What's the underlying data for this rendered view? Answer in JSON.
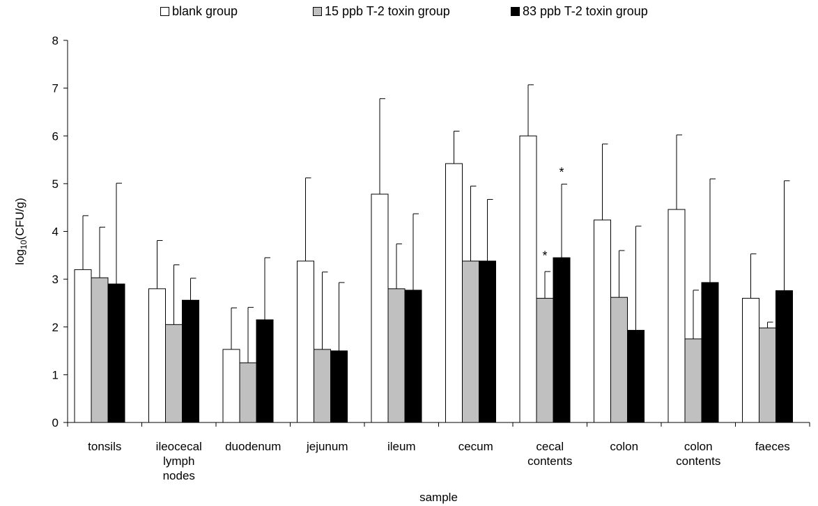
{
  "chart_data": {
    "type": "bar",
    "title": "",
    "xlabel": "sample",
    "ylabel": "log10(CFU/g)",
    "ylabel_parts": {
      "base": "log",
      "sub": "10",
      "rest": "(CFU/g)"
    },
    "ylim": [
      0,
      8
    ],
    "y_ticks": [
      0,
      1,
      2,
      3,
      4,
      5,
      6,
      7,
      8
    ],
    "grid": false,
    "legend_placement": "top",
    "categories": [
      [
        "tonsils"
      ],
      [
        "ileocecal",
        "lymph",
        "nodes"
      ],
      [
        "duodenum"
      ],
      [
        "jejunum"
      ],
      [
        "ileum"
      ],
      [
        "cecum"
      ],
      [
        "cecal",
        "contents"
      ],
      [
        "colon"
      ],
      [
        "colon",
        "contents"
      ],
      [
        "faeces"
      ]
    ],
    "series": [
      {
        "name": "blank group",
        "color": "#ffffff",
        "values": [
          3.2,
          2.8,
          1.53,
          3.38,
          4.78,
          5.42,
          6.0,
          4.24,
          4.46,
          2.6
        ],
        "errors": [
          1.13,
          1.01,
          0.87,
          1.74,
          2.0,
          0.68,
          1.07,
          1.59,
          1.56,
          0.93
        ]
      },
      {
        "name": "15 ppb T-2 toxin group",
        "color": "#c0c0c0",
        "values": [
          3.03,
          2.05,
          1.25,
          1.53,
          2.8,
          3.38,
          2.6,
          2.62,
          1.75,
          1.98
        ],
        "errors": [
          1.06,
          1.25,
          1.16,
          1.62,
          0.94,
          1.57,
          0.56,
          0.98,
          1.02,
          0.12
        ]
      },
      {
        "name": "83 ppb T-2 toxin group",
        "color": "#000000",
        "values": [
          2.9,
          2.56,
          2.15,
          1.5,
          2.77,
          3.38,
          3.45,
          1.93,
          2.93,
          2.76
        ],
        "errors": [
          2.11,
          0.46,
          1.3,
          1.43,
          1.6,
          1.29,
          1.54,
          2.18,
          2.17,
          2.3
        ]
      }
    ],
    "annotations": [
      {
        "text": "*",
        "category_index": 6,
        "series_index": 1,
        "y": 3.55
      },
      {
        "text": "*",
        "category_index": 6,
        "series_index": 2,
        "y": 5.3
      }
    ]
  }
}
